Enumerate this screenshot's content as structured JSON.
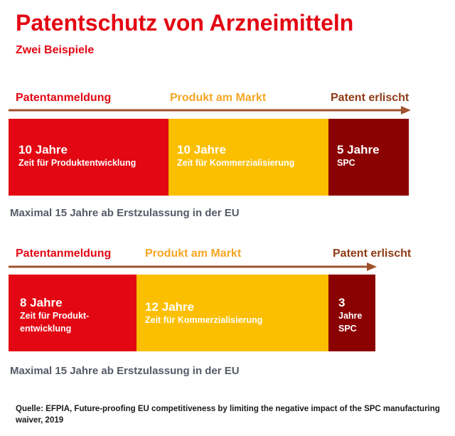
{
  "title": "Patentschutz von Arzneimitteln",
  "subtitle": "Zwei Beispiele",
  "colors": {
    "title": "#e30613",
    "red": "#e30613",
    "yellow": "#fcbf00",
    "yellow_text": "#f5a623",
    "dark_red": "#8b0000",
    "brown_text": "#8e3b14",
    "arrow": "#a0522d",
    "note": "#555a66"
  },
  "example1": {
    "label_start": "Patentanmeldung",
    "label_middle": "Produkt am Markt",
    "label_end": "Patent erlischt",
    "segments": [
      {
        "years": 10,
        "title": "10 Jahre",
        "text": "Zeit für Produktentwicklung"
      },
      {
        "years": 10,
        "title": "10 Jahre",
        "text": "Zeit für Kommerzialisierung"
      },
      {
        "years": 5,
        "title": "5 Jahre",
        "text": "SPC"
      }
    ],
    "note": "Maximal 15 Jahre ab Erstzulassung in der EU"
  },
  "example2": {
    "label_start": "Patentanmeldung",
    "label_middle": "Produkt am Markt",
    "label_end": "Patent erlischt",
    "segments": [
      {
        "years": 8,
        "title": "8 Jahre",
        "text": "Zeit für Produkt-\nentwicklung"
      },
      {
        "years": 12,
        "title": "12 Jahre",
        "text": "Zeit für Kommerzialisierung"
      },
      {
        "years": 3,
        "title": "3",
        "text": "Jahre\nSPC"
      }
    ],
    "note": "Maximal 15 Jahre ab Erstzulassung in der EU"
  },
  "source": "Quelle: EFPIA, Future-proofing EU competitiveness by limiting the negative impact of the SPC manufacturing waiver, 2019"
}
